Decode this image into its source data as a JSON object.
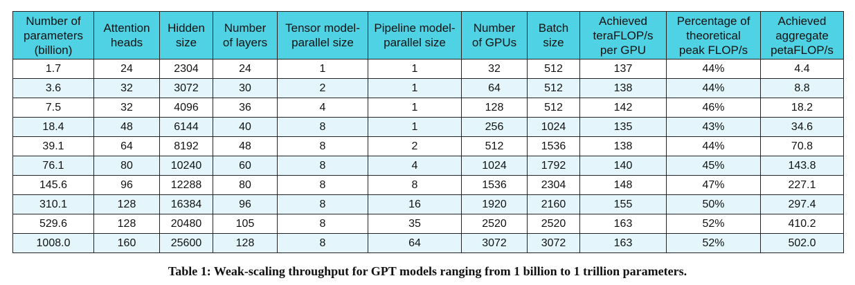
{
  "table": {
    "headers": [
      "Number of\nparameters\n(billion)",
      "Attention\nheads",
      "Hidden\nsize",
      "Number\nof layers",
      "Tensor model-\nparallel size",
      "Pipeline model-\nparallel size",
      "Number\nof GPUs",
      "Batch\nsize",
      "Achieved\nteraFLOP/s\nper GPU",
      "Percentage of\ntheoretical\npeak FLOP/s",
      "Achieved\naggregate\npetaFLOP/s"
    ],
    "rows": [
      [
        "1.7",
        "24",
        "2304",
        "24",
        "1",
        "1",
        "32",
        "512",
        "137",
        "44%",
        "4.4"
      ],
      [
        "3.6",
        "32",
        "3072",
        "30",
        "2",
        "1",
        "64",
        "512",
        "138",
        "44%",
        "8.8"
      ],
      [
        "7.5",
        "32",
        "4096",
        "36",
        "4",
        "1",
        "128",
        "512",
        "142",
        "46%",
        "18.2"
      ],
      [
        "18.4",
        "48",
        "6144",
        "40",
        "8",
        "1",
        "256",
        "1024",
        "135",
        "43%",
        "34.6"
      ],
      [
        "39.1",
        "64",
        "8192",
        "48",
        "8",
        "2",
        "512",
        "1536",
        "138",
        "44%",
        "70.8"
      ],
      [
        "76.1",
        "80",
        "10240",
        "60",
        "8",
        "4",
        "1024",
        "1792",
        "140",
        "45%",
        "143.8"
      ],
      [
        "145.6",
        "96",
        "12288",
        "80",
        "8",
        "8",
        "1536",
        "2304",
        "148",
        "47%",
        "227.1"
      ],
      [
        "310.1",
        "128",
        "16384",
        "96",
        "8",
        "16",
        "1920",
        "2160",
        "155",
        "50%",
        "297.4"
      ],
      [
        "529.6",
        "128",
        "20480",
        "105",
        "8",
        "35",
        "2520",
        "2520",
        "163",
        "52%",
        "410.2"
      ],
      [
        "1008.0",
        "160",
        "25600",
        "128",
        "8",
        "64",
        "3072",
        "3072",
        "163",
        "52%",
        "502.0"
      ]
    ]
  },
  "caption": "Table 1: Weak-scaling throughput for GPT models ranging from 1 billion to 1 trillion parameters.",
  "colors": {
    "header_bg": "#4fd2e3",
    "stripe_bg": "#e4f6fb",
    "row_bg": "#ffffff",
    "border": "#222222"
  }
}
